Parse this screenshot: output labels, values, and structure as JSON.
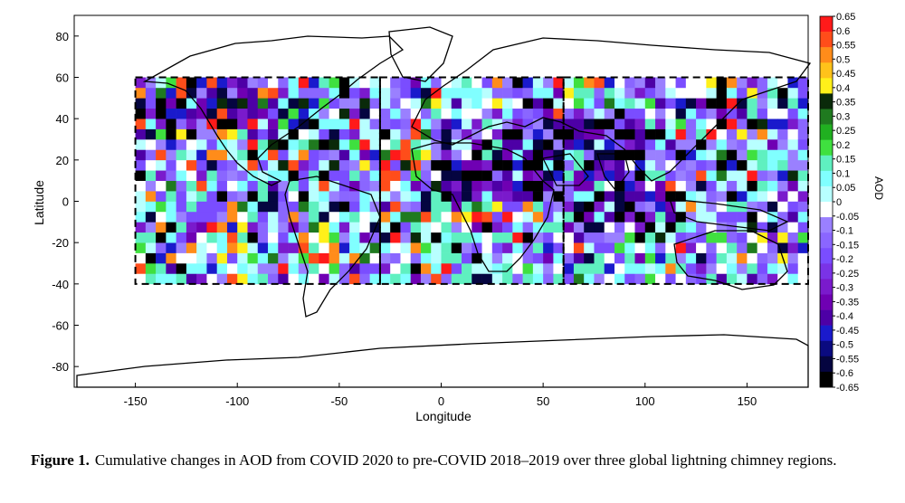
{
  "chart_data": {
    "type": "heatmap",
    "title": "",
    "xlabel": "Longitude",
    "ylabel": "Latitude",
    "xlim": [
      -180,
      180
    ],
    "ylim": [
      -90,
      90
    ],
    "xticks": [
      -150,
      -100,
      -50,
      0,
      50,
      100,
      150
    ],
    "yticks": [
      80,
      60,
      40,
      20,
      0,
      -20,
      -40,
      -60,
      -80
    ],
    "colorbar": {
      "label": "AOD",
      "range": [
        -0.65,
        0.65
      ],
      "ticks": [
        "0.65",
        "0.6",
        "0.55",
        "0.5",
        "0.45",
        "0.4",
        "0.35",
        "0.3",
        "0.25",
        "0.2",
        "0.15",
        "0.1",
        "0.05",
        "0",
        "-0.05",
        "-0.1",
        "-0.15",
        "-0.2",
        "-0.25",
        "-0.3",
        "-0.35",
        "-0.4",
        "-0.45",
        "-0.5",
        "-0.55",
        "-0.6",
        "-0.65"
      ],
      "colors": [
        "#ff1a1a",
        "#ff4d1a",
        "#ff8c1a",
        "#ffc21a",
        "#fff01a",
        "#0a2a0a",
        "#1f7a1f",
        "#20b020",
        "#3fe03f",
        "#5ff0c0",
        "#80ffff",
        "#b8ffff",
        "#ffffff",
        "#9a80ff",
        "#8a66ff",
        "#7a4dff",
        "#7a33e6",
        "#7a1acc",
        "#6f00b3",
        "#4d00a6",
        "#1a1acc",
        "#0a0a80",
        "#050540",
        "#000000"
      ]
    },
    "regions": [
      {
        "lon": [
          -150,
          -30
        ],
        "lat": [
          -40,
          60
        ]
      },
      {
        "lon": [
          -30,
          60
        ],
        "lat": [
          -40,
          60
        ]
      },
      {
        "lon": [
          60,
          180
        ],
        "lat": [
          -40,
          60
        ]
      }
    ]
  },
  "caption": {
    "label": "Figure 1.",
    "text": "Cumulative changes in AOD from COVID 2020 to pre-COVID 2018–2019 over three global lightning chimney regions."
  }
}
